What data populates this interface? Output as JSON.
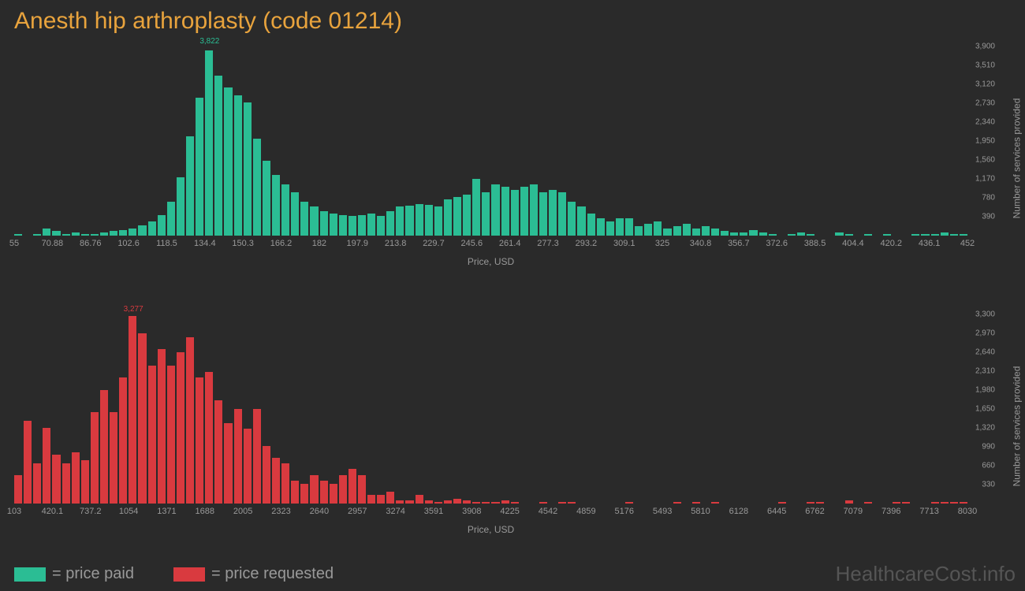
{
  "title": "Anesth hip arthroplasty (code 01214)",
  "watermark": "HealthcareCost.info",
  "legend": {
    "paid": "= price paid",
    "requested": "= price requested"
  },
  "chart_paid": {
    "type": "histogram",
    "color": "#2bbd94",
    "background_color": "#2a2a2a",
    "x_label": "Price, USD",
    "y_label": "Number of services provided",
    "label_fontsize": 12,
    "tick_fontsize": 11,
    "peak_label": "3,822",
    "peak_index": 20,
    "x_ticks": [
      "55",
      "70.88",
      "86.76",
      "102.6",
      "118.5",
      "134.4",
      "150.3",
      "166.2",
      "182",
      "197.9",
      "213.8",
      "229.7",
      "245.6",
      "261.4",
      "277.3",
      "293.2",
      "309.1",
      "325",
      "340.8",
      "356.7",
      "372.6",
      "388.5",
      "404.4",
      "420.2",
      "436.1",
      "452"
    ],
    "y_ticks": [
      "390",
      "780",
      "1,170",
      "1,560",
      "1,950",
      "2,340",
      "2,730",
      "3,120",
      "3,510",
      "3,900"
    ],
    "y_max": 3900,
    "values": [
      30,
      0,
      30,
      150,
      90,
      30,
      60,
      30,
      30,
      60,
      90,
      120,
      150,
      210,
      300,
      420,
      700,
      1200,
      2050,
      2850,
      3822,
      3300,
      3050,
      2900,
      2750,
      2000,
      1550,
      1250,
      1050,
      900,
      700,
      600,
      500,
      450,
      420,
      400,
      420,
      450,
      400,
      500,
      600,
      620,
      650,
      630,
      600,
      750,
      800,
      850,
      1170,
      900,
      1050,
      1000,
      950,
      1000,
      1050,
      900,
      950,
      900,
      700,
      600,
      450,
      350,
      300,
      350,
      350,
      200,
      250,
      300,
      150,
      200,
      250,
      150,
      200,
      150,
      100,
      60,
      60,
      120,
      60,
      30,
      0,
      30,
      60,
      30,
      0,
      0,
      60,
      30,
      0,
      30,
      0,
      30,
      0,
      0,
      30,
      30,
      30,
      60,
      30,
      30
    ]
  },
  "chart_requested": {
    "type": "histogram",
    "color": "#d93a3f",
    "background_color": "#2a2a2a",
    "x_label": "Price, USD",
    "y_label": "Number of services provided",
    "label_fontsize": 12,
    "tick_fontsize": 11,
    "peak_label": "3,277",
    "peak_index": 12,
    "x_ticks": [
      "103",
      "420.1",
      "737.2",
      "1054",
      "1371",
      "1688",
      "2005",
      "2323",
      "2640",
      "2957",
      "3274",
      "3591",
      "3908",
      "4225",
      "4542",
      "4859",
      "5176",
      "5493",
      "5810",
      "6128",
      "6445",
      "6762",
      "7079",
      "7396",
      "7713",
      "8030"
    ],
    "y_ticks": [
      "330",
      "660",
      "990",
      "1,320",
      "1,650",
      "1,980",
      "2,310",
      "2,640",
      "2,970",
      "3,300"
    ],
    "y_max": 3300,
    "values": [
      500,
      1450,
      700,
      1320,
      850,
      700,
      900,
      750,
      1600,
      1980,
      1600,
      2200,
      3277,
      2970,
      2400,
      2700,
      2400,
      2640,
      2900,
      2200,
      2300,
      1800,
      1400,
      1650,
      1300,
      1650,
      1000,
      800,
      700,
      400,
      350,
      500,
      400,
      350,
      500,
      600,
      500,
      150,
      150,
      200,
      50,
      50,
      150,
      50,
      30,
      50,
      80,
      50,
      30,
      30,
      30,
      50,
      30,
      0,
      0,
      30,
      0,
      30,
      30,
      0,
      0,
      0,
      0,
      0,
      30,
      0,
      0,
      0,
      0,
      30,
      0,
      30,
      0,
      30,
      0,
      0,
      0,
      0,
      0,
      0,
      30,
      0,
      0,
      30,
      30,
      0,
      0,
      50,
      0,
      30,
      0,
      0,
      30,
      30,
      0,
      0,
      30,
      30,
      30,
      30
    ]
  }
}
